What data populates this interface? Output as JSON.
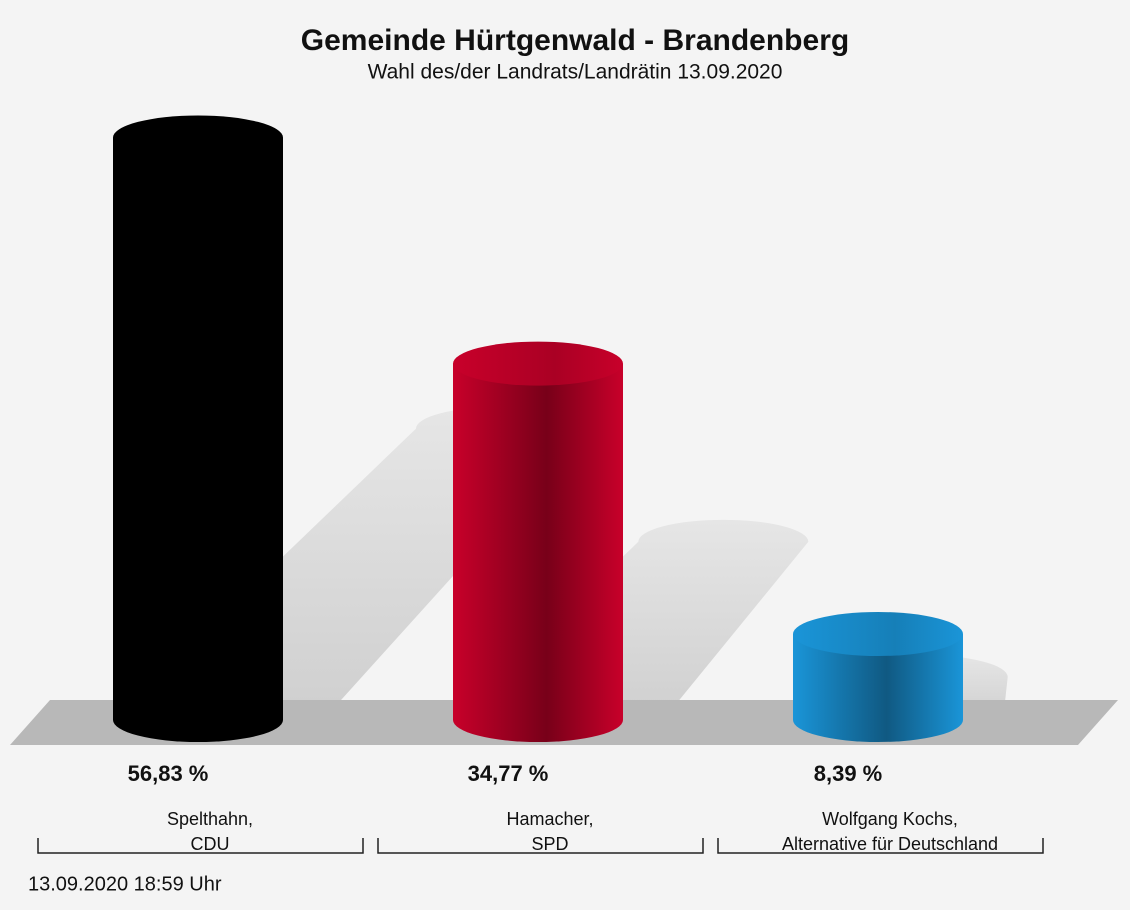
{
  "chart_data": {
    "type": "cylinder-bar",
    "title": "Gemeinde Hürtgenwald - Brandenberg",
    "subtitle": "Wahl des/der Landrats/Landrätin 13.09.2020",
    "categories": [
      [
        "Spelthahn,",
        "CDU"
      ],
      [
        "Hamacher,",
        "SPD"
      ],
      [
        "Wolfgang Kochs,",
        "Alternative für Deutschland"
      ]
    ],
    "values": [
      56.83,
      34.77,
      8.39
    ],
    "value_labels": [
      "56,83 %",
      "34,77 %",
      "8,39 %"
    ],
    "colors": [
      "#000000",
      "#c8002a",
      "#1a95d8"
    ],
    "footnote": "13.09.2020 18:59 Uhr"
  }
}
